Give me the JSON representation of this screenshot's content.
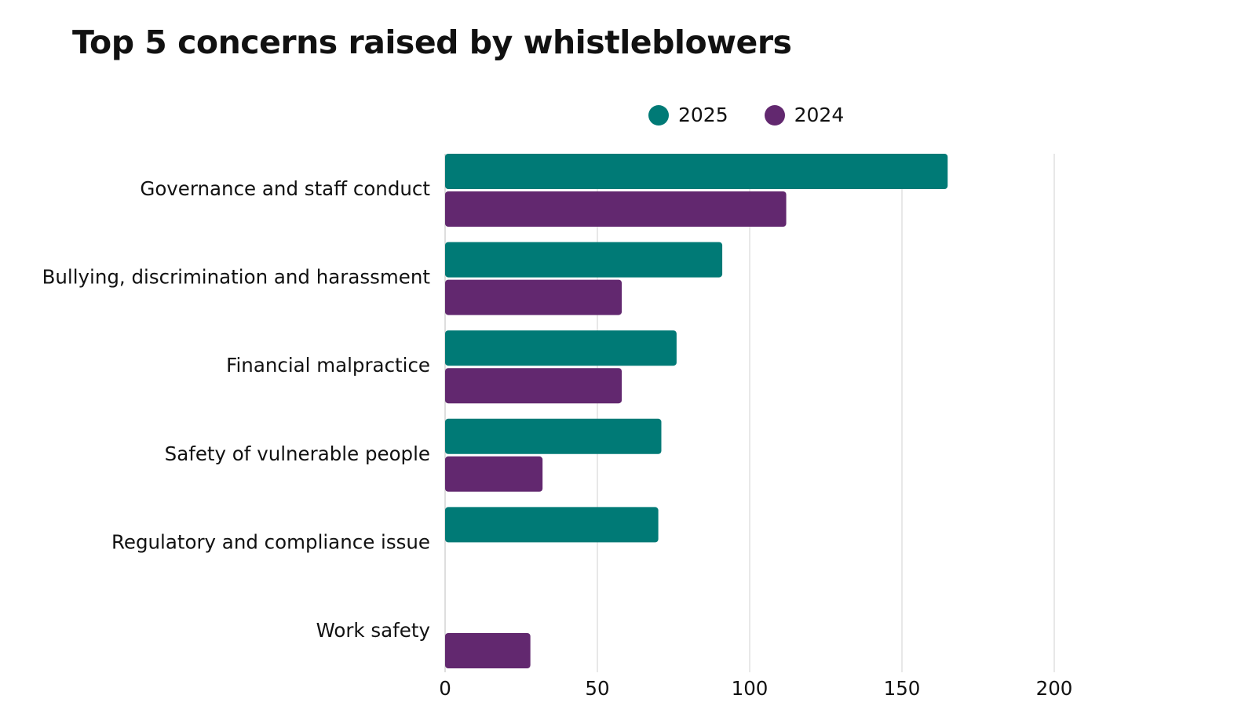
{
  "chart_data": {
    "type": "bar",
    "orientation": "horizontal",
    "title": "Top 5 concerns raised by whistleblowers",
    "categories": [
      "Governance and staff conduct",
      "Bullying, discrimination and harassment",
      "Financial malpractice",
      "Safety of vulnerable people",
      "Regulatory and compliance issue",
      "Work safety"
    ],
    "series": [
      {
        "name": "2025",
        "color": "#007a76",
        "values": [
          165,
          91,
          76,
          71,
          70,
          null
        ]
      },
      {
        "name": "2024",
        "color": "#62286f",
        "values": [
          112,
          58,
          58,
          32,
          null,
          28
        ]
      }
    ],
    "xlim": [
      0,
      200
    ],
    "xticks": [
      0,
      50,
      100,
      150,
      200
    ],
    "grid": true,
    "legend_position": "top"
  }
}
